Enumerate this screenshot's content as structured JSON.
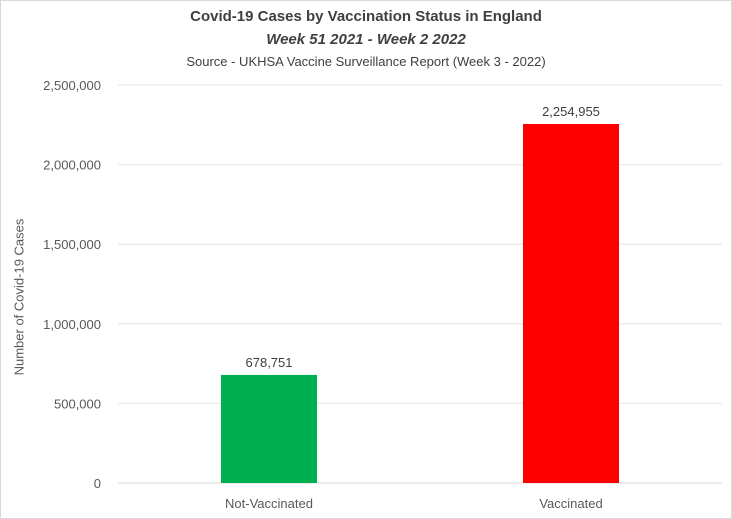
{
  "chart_data": {
    "type": "bar",
    "title": "Covid-19 Cases by Vaccination Status in England",
    "subtitle": "Week 51 2021 - Week 2 2022",
    "source": "Source - UKHSA Vaccine Surveillance Report (Week 3 - 2022)",
    "ylabel": "Number of Covid-19 Cases",
    "xlabel": "",
    "categories": [
      "Not-Vaccinated",
      "Vaccinated"
    ],
    "values": [
      678751,
      2254955
    ],
    "data_labels": [
      "678,751",
      "2,254,955"
    ],
    "colors": [
      "#00b050",
      "#ff0000"
    ],
    "ylim": [
      0,
      2500000
    ],
    "yticks": [
      0,
      500000,
      1000000,
      1500000,
      2000000,
      2500000
    ],
    "ytick_labels": [
      "0",
      "500,000",
      "1,000,000",
      "1,500,000",
      "2,000,000",
      "2,500,000"
    ],
    "grid": true,
    "legend": "none"
  }
}
